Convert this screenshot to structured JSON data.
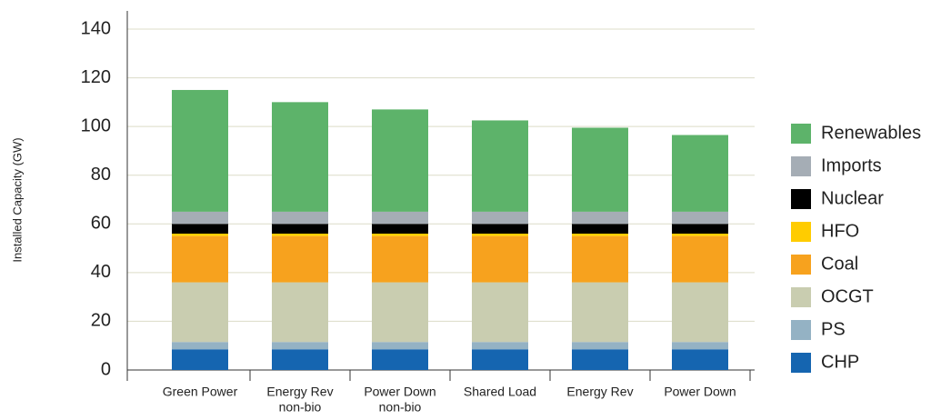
{
  "chart_data": {
    "type": "stacked_bar",
    "y_label": "Installed Capacity (GW)",
    "categories": [
      [
        "Green Power"
      ],
      [
        "Energy Rev",
        "non-bio"
      ],
      [
        "Power Down",
        "non-bio"
      ],
      [
        "Shared Load"
      ],
      [
        "Energy Rev"
      ],
      [
        "Power Down"
      ]
    ],
    "series": [
      {
        "name": "CHP",
        "color": "#1565b0",
        "values": [
          8.5,
          8.5,
          8.5,
          8.5,
          8.5,
          8.5
        ]
      },
      {
        "name": "PS",
        "color": "#94b2c4",
        "values": [
          3,
          3,
          3,
          3,
          3,
          3
        ]
      },
      {
        "name": "OCGT",
        "color": "#c9cdb0",
        "values": [
          24.5,
          24.5,
          24.5,
          24.5,
          24.5,
          24.5
        ]
      },
      {
        "name": "Coal",
        "color": "#f7a21e",
        "values": [
          19,
          19,
          19,
          19,
          19,
          19
        ]
      },
      {
        "name": "HFO",
        "color": "#ffcc00",
        "values": [
          1,
          1,
          1,
          1,
          1,
          1
        ]
      },
      {
        "name": "Nuclear",
        "color": "#000000",
        "values": [
          4,
          4,
          4,
          4,
          4,
          4
        ]
      },
      {
        "name": "Imports",
        "color": "#a5adb5",
        "values": [
          5,
          5,
          5,
          5,
          5,
          5
        ]
      },
      {
        "name": "Renewables",
        "color": "#5db36a",
        "values": [
          50,
          45,
          42,
          37.5,
          34.5,
          31.5
        ]
      }
    ],
    "ylim": [
      0,
      140
    ],
    "yticks": [
      0,
      20,
      40,
      60,
      80,
      100,
      120,
      140
    ],
    "grid": true,
    "legend": "right"
  }
}
